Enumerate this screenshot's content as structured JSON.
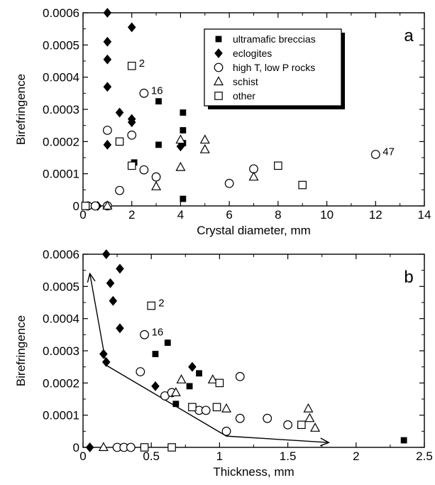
{
  "chart_data": [
    {
      "panel": "a",
      "type": "scatter",
      "panel_letter": "a",
      "xlabel": "Crystal diameter, mm",
      "ylabel": "Birefringence",
      "xlim": [
        0,
        14
      ],
      "ylim": [
        0,
        0.0006
      ],
      "xticks": [
        0,
        2,
        4,
        6,
        8,
        10,
        12,
        14
      ],
      "xtick_labels": [
        "0",
        "2",
        "4",
        "6",
        "8",
        "10",
        "12",
        "14"
      ],
      "yticks": [
        0,
        0.0001,
        0.0002,
        0.0003,
        0.0004,
        0.0005,
        0.0006
      ],
      "ytick_labels": [
        "0",
        "0.0001",
        "0.0002",
        "0.0003",
        "0.0004",
        "0.0005",
        "0.0006"
      ],
      "grid": false,
      "legend_position": "top-right",
      "series": [
        {
          "name": "ultramafic breccias",
          "marker": "square-filled",
          "points": [
            [
              3.1,
              0.000325
            ],
            [
              3.1,
              0.00019
            ],
            [
              4.1,
              0.00029
            ],
            [
              4.1,
              0.000235
            ],
            [
              4.1,
              0.000195
            ],
            [
              2.1,
              0.000135
            ],
            [
              4.1,
              2.2e-05
            ]
          ]
        },
        {
          "name": "eclogites",
          "marker": "diamond-filled",
          "points": [
            [
              1.0,
              0.0006
            ],
            [
              2.0,
              0.000555
            ],
            [
              1.0,
              0.00051
            ],
            [
              1.0,
              0.000455
            ],
            [
              1.0,
              0.00037
            ],
            [
              1.5,
              0.00029
            ],
            [
              2.0,
              0.00027
            ],
            [
              2.0,
              0.00026
            ],
            [
              1.0,
              0.00019
            ],
            [
              4.0,
              0.000185
            ],
            [
              0.6,
              0.0
            ]
          ]
        },
        {
          "name": "high T, low P rocks",
          "marker": "circle-open",
          "points": [
            [
              2.5,
              0.00035
            ],
            [
              1.0,
              0.000235
            ],
            [
              2.0,
              0.00022
            ],
            [
              2.5,
              0.000112
            ],
            [
              3.0,
              9e-05
            ],
            [
              1.5,
              4.8e-05
            ],
            [
              6.0,
              7e-05
            ],
            [
              7.0,
              0.000115
            ],
            [
              12.0,
              0.00016
            ],
            [
              0.2,
              0.0
            ],
            [
              0.5,
              0.0
            ],
            [
              1.0,
              0.0
            ]
          ]
        },
        {
          "name": "schist",
          "marker": "triangle-open",
          "points": [
            [
              4.0,
              0.000205
            ],
            [
              5.0,
              0.000205
            ],
            [
              5.0,
              0.000175
            ],
            [
              4.0,
              0.00012
            ],
            [
              3.0,
              6e-05
            ],
            [
              7.0,
              9e-05
            ],
            [
              1.0,
              0.0
            ]
          ]
        },
        {
          "name": "other",
          "marker": "square-open",
          "points": [
            [
              2.0,
              0.000435
            ],
            [
              1.5,
              0.0002
            ],
            [
              2.0,
              0.000125
            ],
            [
              8.0,
              0.000125
            ],
            [
              9.0,
              6.5e-05
            ],
            [
              0.1,
              0.0
            ]
          ]
        }
      ],
      "annotations": [
        {
          "text": "2",
          "x": 2.0,
          "y": 0.000435
        },
        {
          "text": "16",
          "x": 2.5,
          "y": 0.00035
        },
        {
          "text": "47",
          "x": 12.0,
          "y": 0.00016
        }
      ]
    },
    {
      "panel": "b",
      "type": "scatter",
      "panel_letter": "b",
      "xlabel": "Thickness, mm",
      "ylabel": "Birefringence",
      "xlim": [
        0,
        2.5
      ],
      "ylim": [
        0,
        0.0006
      ],
      "xticks": [
        0,
        0.5,
        1,
        1.5,
        2,
        2.5
      ],
      "xtick_labels": [
        "0",
        "0.5",
        "1",
        "1.5",
        "2",
        "2.5"
      ],
      "yticks": [
        0,
        0.0001,
        0.0002,
        0.0003,
        0.0004,
        0.0005,
        0.0006
      ],
      "ytick_labels": [
        "0",
        "0.0001",
        "0.0002",
        "0.0003",
        "0.0004",
        "0.0005",
        "0.0006"
      ],
      "grid": false,
      "series": [
        {
          "name": "ultramafic breccias",
          "marker": "square-filled",
          "points": [
            [
              0.62,
              0.000325
            ],
            [
              0.53,
              0.00029
            ],
            [
              0.85,
              0.00023
            ],
            [
              0.78,
              0.00019
            ],
            [
              0.68,
              0.000135
            ],
            [
              2.35,
              2.2e-05
            ]
          ]
        },
        {
          "name": "eclogites",
          "marker": "diamond-filled",
          "points": [
            [
              0.17,
              0.0006
            ],
            [
              0.27,
              0.000555
            ],
            [
              0.2,
              0.00051
            ],
            [
              0.22,
              0.000455
            ],
            [
              0.27,
              0.00037
            ],
            [
              0.15,
              0.00029
            ],
            [
              0.17,
              0.000265
            ],
            [
              0.8,
              0.00025
            ],
            [
              0.53,
              0.00019
            ],
            [
              0.05,
              0.0
            ]
          ]
        },
        {
          "name": "high T, low P rocks",
          "marker": "circle-open",
          "points": [
            [
              0.45,
              0.00035
            ],
            [
              0.42,
              0.000235
            ],
            [
              0.6,
              0.00016
            ],
            [
              0.65,
              0.00017
            ],
            [
              0.85,
              0.000115
            ],
            [
              0.9,
              0.000115
            ],
            [
              1.15,
              0.00022
            ],
            [
              1.05,
              5e-05
            ],
            [
              1.15,
              9e-05
            ],
            [
              1.35,
              9e-05
            ],
            [
              1.5,
              7e-05
            ],
            [
              0.25,
              0.0
            ],
            [
              0.3,
              0.0
            ],
            [
              0.35,
              0.0
            ]
          ]
        },
        {
          "name": "schist",
          "marker": "triangle-open",
          "points": [
            [
              0.72,
              0.00021
            ],
            [
              0.95,
              0.00021
            ],
            [
              0.68,
              0.00017
            ],
            [
              1.05,
              0.00012
            ],
            [
              1.65,
              0.00012
            ],
            [
              1.66,
              9e-05
            ],
            [
              1.7,
              6e-05
            ],
            [
              0.15,
              0.0
            ]
          ]
        },
        {
          "name": "other",
          "marker": "square-open",
          "points": [
            [
              0.5,
              0.00044
            ],
            [
              1.0,
              0.0002
            ],
            [
              0.8,
              0.000125
            ],
            [
              0.98,
              0.000125
            ],
            [
              1.6,
              7e-05
            ],
            [
              0.45,
              0.0
            ],
            [
              0.65,
              0.0
            ]
          ]
        }
      ],
      "annotations": [
        {
          "text": "2",
          "x": 0.5,
          "y": 0.00044
        },
        {
          "text": "16",
          "x": 0.45,
          "y": 0.00035
        }
      ],
      "trend_arrow": {
        "points": [
          [
            1.8,
            1.5e-05
          ],
          [
            1.05,
            3.5e-05
          ],
          [
            0.17,
            0.000255
          ],
          [
            0.05,
            0.00054
          ]
        ],
        "arrowheads": "both"
      }
    }
  ]
}
